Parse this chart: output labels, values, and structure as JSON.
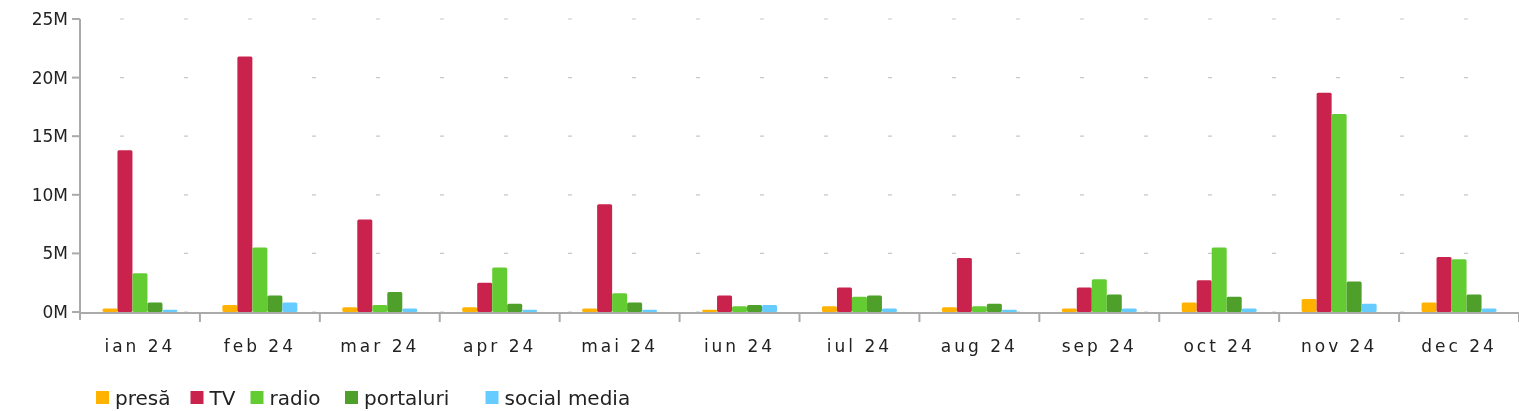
{
  "chart_data": {
    "type": "bar",
    "categories": [
      "ian 24",
      "feb 24",
      "mar 24",
      "apr 24",
      "mai 24",
      "iun 24",
      "iul 24",
      "aug 24",
      "sep 24",
      "oct 24",
      "nov 24",
      "dec 24"
    ],
    "series": [
      {
        "name": "presă",
        "color": "#ffb300",
        "values": [
          0.3,
          0.6,
          0.4,
          0.4,
          0.3,
          0.2,
          0.5,
          0.4,
          0.3,
          0.8,
          1.1,
          0.8
        ]
      },
      {
        "name": "TV",
        "color": "#c9234d",
        "values": [
          13.8,
          21.8,
          7.9,
          2.5,
          9.2,
          1.4,
          2.1,
          4.6,
          2.1,
          2.7,
          18.7,
          4.7
        ]
      },
      {
        "name": "radio",
        "color": "#64cc33",
        "values": [
          3.3,
          5.5,
          0.6,
          3.8,
          1.6,
          0.5,
          1.3,
          0.5,
          2.8,
          5.5,
          16.9,
          4.5
        ]
      },
      {
        "name": "portaluri",
        "color": "#4fa02a",
        "values": [
          0.8,
          1.4,
          1.7,
          0.7,
          0.8,
          0.6,
          1.4,
          0.7,
          1.5,
          1.3,
          2.6,
          1.5
        ]
      },
      {
        "name": "social media",
        "color": "#66ccff",
        "values": [
          0.2,
          0.8,
          0.3,
          0.2,
          0.2,
          0.6,
          0.3,
          0.2,
          0.3,
          0.3,
          0.7,
          0.3
        ]
      }
    ],
    "ylim": [
      0,
      25
    ],
    "yticks": [
      {
        "value": 0,
        "label": "0M"
      },
      {
        "value": 5,
        "label": "5M"
      },
      {
        "value": 10,
        "label": "10M"
      },
      {
        "value": 15,
        "label": "15M"
      },
      {
        "value": 20,
        "label": "20M"
      },
      {
        "value": 25,
        "label": "25M"
      }
    ],
    "grid": "y",
    "legend": "bottom left"
  }
}
